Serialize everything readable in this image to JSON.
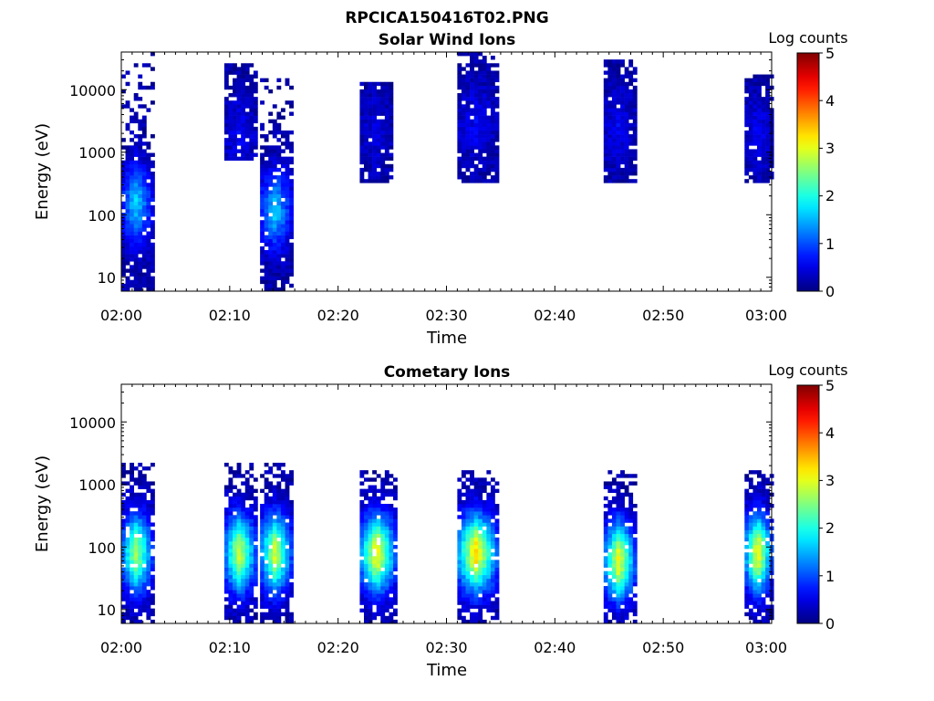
{
  "figure_title": "RPCICA150416T02.PNG",
  "chart_data": [
    {
      "type": "heatmap",
      "title": "Solar Wind Ions",
      "xlabel": "Time",
      "ylabel": "Energy (eV)",
      "x_ticks": [
        "02:00",
        "02:10",
        "02:20",
        "02:30",
        "02:40",
        "02:50",
        "03:00"
      ],
      "x_range": [
        "02:00",
        "03:00"
      ],
      "y_scale": "log",
      "y_range_eV": [
        6,
        40000
      ],
      "y_ticks": [
        "10",
        "100",
        "1000",
        "10000"
      ],
      "colorbar": {
        "title": "Log counts",
        "range": [
          0,
          5
        ],
        "ticks": [
          "0",
          "1",
          "2",
          "3",
          "4",
          "5"
        ],
        "colormap": "jet"
      },
      "events": [
        {
          "start_min": 0.0,
          "end_min": 3.0,
          "e_low_eV": 6,
          "e_high_eV": 40000,
          "peak_eV": 150,
          "max_log_counts": 1.5,
          "tail_to_floor": true
        },
        {
          "start_min": 9.5,
          "end_min": 12.5,
          "e_low_eV": 800,
          "e_high_eV": 25000,
          "peak_eV": 2000,
          "max_log_counts": 0.4,
          "tail_to_floor": false
        },
        {
          "start_min": 12.8,
          "end_min": 15.8,
          "e_low_eV": 6,
          "e_high_eV": 20000,
          "peak_eV": 120,
          "max_log_counts": 1.5,
          "tail_to_floor": true
        },
        {
          "start_min": 22.0,
          "end_min": 25.0,
          "e_low_eV": 350,
          "e_high_eV": 12000,
          "peak_eV": 2000,
          "max_log_counts": 0.3,
          "tail_to_floor": false
        },
        {
          "start_min": 31.0,
          "end_min": 35.0,
          "e_low_eV": 330,
          "e_high_eV": 40000,
          "peak_eV": 3000,
          "max_log_counts": 0.4,
          "tail_to_floor": false
        },
        {
          "start_min": 44.5,
          "end_min": 47.5,
          "e_low_eV": 330,
          "e_high_eV": 28000,
          "peak_eV": 2500,
          "max_log_counts": 0.4,
          "tail_to_floor": false
        },
        {
          "start_min": 57.5,
          "end_min": 60.0,
          "e_low_eV": 350,
          "e_high_eV": 16000,
          "peak_eV": 2000,
          "max_log_counts": 0.4,
          "tail_to_floor": false
        }
      ]
    },
    {
      "type": "heatmap",
      "title": "Cometary Ions",
      "xlabel": "Time",
      "ylabel": "Energy (eV)",
      "x_ticks": [
        "02:00",
        "02:10",
        "02:20",
        "02:30",
        "02:40",
        "02:50",
        "03:00"
      ],
      "x_range": [
        "02:00",
        "03:00"
      ],
      "y_scale": "log",
      "y_range_eV": [
        6,
        40000
      ],
      "y_ticks": [
        "10",
        "100",
        "1000",
        "10000"
      ],
      "colorbar": {
        "title": "Log counts",
        "range": [
          0,
          5
        ],
        "ticks": [
          "0",
          "1",
          "2",
          "3",
          "4",
          "5"
        ],
        "colormap": "jet"
      },
      "events": [
        {
          "start_min": 0.0,
          "end_min": 3.0,
          "e_low_eV": 6,
          "e_high_eV": 2000,
          "peak_eV": 80,
          "max_log_counts": 2.6
        },
        {
          "start_min": 9.5,
          "end_min": 12.5,
          "e_low_eV": 6,
          "e_high_eV": 2000,
          "peak_eV": 80,
          "max_log_counts": 2.8
        },
        {
          "start_min": 12.8,
          "end_min": 15.8,
          "e_low_eV": 6,
          "e_high_eV": 2000,
          "peak_eV": 80,
          "max_log_counts": 2.8
        },
        {
          "start_min": 22.0,
          "end_min": 25.5,
          "e_low_eV": 6,
          "e_high_eV": 1500,
          "peak_eV": 80,
          "max_log_counts": 3.1
        },
        {
          "start_min": 31.0,
          "end_min": 35.0,
          "e_low_eV": 6,
          "e_high_eV": 1500,
          "peak_eV": 80,
          "max_log_counts": 3.2
        },
        {
          "start_min": 44.5,
          "end_min": 47.5,
          "e_low_eV": 6,
          "e_high_eV": 1500,
          "peak_eV": 60,
          "max_log_counts": 3.0
        },
        {
          "start_min": 57.5,
          "end_min": 60.0,
          "e_low_eV": 6,
          "e_high_eV": 1500,
          "peak_eV": 80,
          "max_log_counts": 3.1
        }
      ]
    }
  ]
}
